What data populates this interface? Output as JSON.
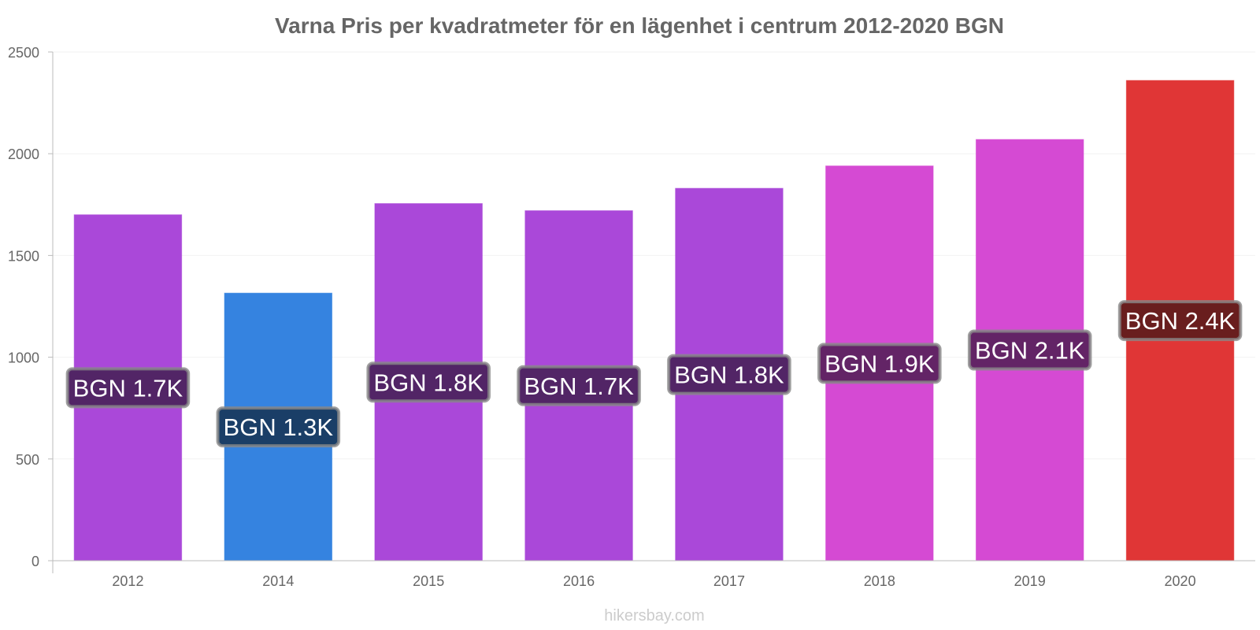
{
  "chart_data": {
    "type": "bar",
    "title": "Varna Pris per kvadratmeter för en lägenhet i centrum 2012-2020 BGN",
    "xlabel": "",
    "ylabel": "",
    "categories": [
      "2012",
      "2014",
      "2015",
      "2016",
      "2017",
      "2018",
      "2019",
      "2020"
    ],
    "values": [
      1700,
      1315,
      1755,
      1720,
      1830,
      1940,
      2070,
      2360
    ],
    "data_labels": [
      "BGN 1.7K",
      "BGN 1.3K",
      "BGN 1.8K",
      "BGN 1.7K",
      "BGN 1.8K",
      "BGN 1.9K",
      "BGN 2.1K",
      "BGN 2.4K"
    ],
    "bar_colors": [
      "#aa48d9",
      "#3583e0",
      "#aa48d9",
      "#aa48d9",
      "#aa48d9",
      "#d54ad3",
      "#d54ad3",
      "#e03636"
    ],
    "label_box_colors": [
      "#522566",
      "#1a3e67",
      "#522566",
      "#522566",
      "#522566",
      "#632466",
      "#632466",
      "#691e1e"
    ],
    "ylim": [
      0,
      2500
    ],
    "yticks": [
      0,
      500,
      1000,
      1500,
      2000,
      2500
    ],
    "grid": true,
    "legend": "none"
  },
  "watermark": "hikersbay.com"
}
